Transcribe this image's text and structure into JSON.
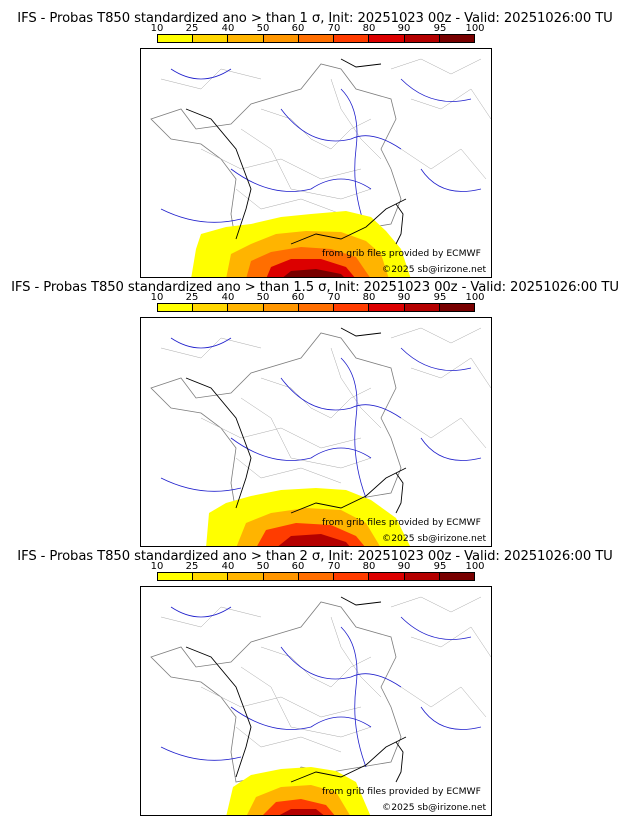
{
  "panels": [
    {
      "title": "IFS - Probas T850  standardized ano > than 1 σ, Init: 20251023 00z - Valid: 20251026:00 TU"
    },
    {
      "title": "IFS - Probas T850  standardized ano > than 1.5 σ, Init: 20251023 00z - Valid: 20251026:00 TU"
    },
    {
      "title": "IFS - Probas T850  standardized ano > than 2 σ, Init: 20251023 00z - Valid: 20251026:00 TU"
    }
  ],
  "scale": {
    "ticks": [
      "10",
      "25",
      "40",
      "50",
      "60",
      "70",
      "80",
      "90",
      "95",
      "100"
    ],
    "colors": [
      "#ffff00",
      "#ffd700",
      "#ffb400",
      "#ff9600",
      "#ff6e00",
      "#ff3c00",
      "#dc0000",
      "#b40000",
      "#780000"
    ]
  },
  "credits": {
    "source": "from grib files provided by ECMWF",
    "copyright": "©2025 sb@irizone.net"
  }
}
